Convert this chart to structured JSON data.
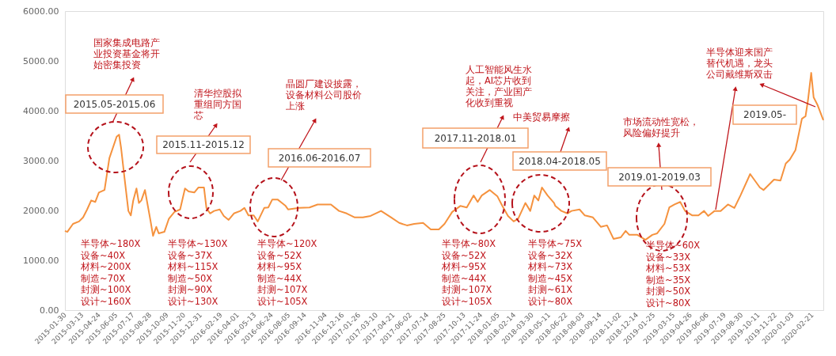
{
  "chart_data": {
    "type": "line",
    "x": [
      "2015-01-30",
      "2015-02-05",
      "2015-02-19",
      "2015-03-06",
      "2015-03-16",
      "2015-03-26",
      "2015-04-05",
      "2015-04-15",
      "2015-04-24",
      "2015-05-08",
      "2015-05-20",
      "2015-06-07",
      "2015-06-13",
      "2015-06-18",
      "2015-06-26",
      "2015-07-06",
      "2015-07-12",
      "2015-07-18",
      "2015-07-26",
      "2015-08-01",
      "2015-08-07",
      "2015-08-16",
      "2015-08-24",
      "2015-08-30",
      "2015-09-05",
      "2015-09-13",
      "2015-09-19",
      "2015-10-03",
      "2015-10-14",
      "2015-10-28",
      "2015-11-11",
      "2015-11-23",
      "2015-12-02",
      "2015-12-16",
      "2015-12-26",
      "2016-01-09",
      "2016-01-15",
      "2016-01-24",
      "2016-02-03",
      "2016-02-17",
      "2016-02-27",
      "2016-03-10",
      "2016-03-23",
      "2016-04-08",
      "2016-04-18",
      "2016-04-28",
      "2016-05-11",
      "2016-05-21",
      "2016-06-06",
      "2016-06-16",
      "2016-06-26",
      "2016-07-09",
      "2016-07-29",
      "2016-08-04",
      "2016-08-31",
      "2016-09-26",
      "2016-10-16",
      "2016-11-18",
      "2016-12-08",
      "2016-12-27",
      "2017-01-16",
      "2017-02-05",
      "2017-02-24",
      "2017-03-22",
      "2017-04-16",
      "2017-05-06",
      "2017-05-25",
      "2017-06-12",
      "2017-07-04",
      "2017-07-23",
      "2017-08-12",
      "2017-08-26",
      "2017-09-14",
      "2017-10-04",
      "2017-10-20",
      "2017-11-06",
      "2017-11-16",
      "2017-11-26",
      "2017-12-16",
      "2018-01-04",
      "2018-01-16",
      "2018-01-30",
      "2018-02-13",
      "2018-02-24",
      "2018-03-14",
      "2018-03-26",
      "2018-04-05",
      "2018-04-15",
      "2018-04-24",
      "2018-05-08",
      "2018-05-24",
      "2018-05-27",
      "2018-06-11",
      "2018-06-26",
      "2018-07-06",
      "2018-07-26",
      "2018-08-08",
      "2018-08-28",
      "2018-09-17",
      "2018-10-02",
      "2018-10-18",
      "2018-11-05",
      "2018-11-17",
      "2018-11-26",
      "2018-12-16",
      "2019-01-05",
      "2019-01-22",
      "2019-02-03",
      "2019-02-21",
      "2019-03-05",
      "2019-03-18",
      "2019-04-01",
      "2019-04-13",
      "2019-05-01",
      "2019-05-16",
      "2019-05-30",
      "2019-06-09",
      "2019-06-25",
      "2019-07-10",
      "2019-07-28",
      "2019-08-13",
      "2019-08-28",
      "2019-09-21",
      "2019-10-15",
      "2019-10-24",
      "2019-11-19",
      "2019-12-05",
      "2019-12-18",
      "2019-12-28",
      "2020-01-11",
      "2020-01-27",
      "2020-02-05",
      "2020-02-11",
      "2020-02-19",
      "2020-02-25",
      "2020-03-06",
      "2020-03-20"
    ],
    "series": [
      {
        "color": "#f5923e",
        "values": [
          1590,
          1570,
          1730,
          1780,
          1860,
          2020,
          2200,
          2170,
          2360,
          2410,
          3050,
          3480,
          3520,
          3250,
          2680,
          1990,
          1900,
          2200,
          2440,
          2150,
          2200,
          2410,
          2050,
          1780,
          1490,
          1670,
          1540,
          1570,
          1830,
          1970,
          2020,
          2440,
          2380,
          2360,
          2460,
          2460,
          2050,
          1940,
          1990,
          2020,
          1890,
          1810,
          1940,
          1990,
          2050,
          1900,
          1900,
          1780,
          2050,
          2060,
          2220,
          2220,
          2090,
          2020,
          2050,
          2060,
          2120,
          2120,
          1990,
          1940,
          1860,
          1860,
          1890,
          1990,
          1860,
          1750,
          1700,
          1730,
          1750,
          1620,
          1620,
          1730,
          1970,
          2090,
          2060,
          2300,
          2170,
          2300,
          2410,
          2280,
          2090,
          1890,
          1780,
          1830,
          2150,
          1990,
          2300,
          2200,
          2460,
          2300,
          2150,
          2090,
          1990,
          1940,
          1990,
          2020,
          1900,
          1860,
          1670,
          1700,
          1430,
          1460,
          1590,
          1510,
          1510,
          1410,
          1510,
          1540,
          1730,
          2060,
          2120,
          2170,
          1990,
          1900,
          1900,
          1990,
          1890,
          1990,
          1990,
          2120,
          2050,
          2300,
          2730,
          2460,
          2410,
          2620,
          2600,
          2940,
          3020,
          3210,
          3840,
          3890,
          4210,
          4760,
          4270,
          4110,
          3810
        ]
      }
    ],
    "xlim": [
      "2015-01-30",
      "2020-03-20"
    ],
    "xticks": [
      "2015-01-30",
      "2015-03-13",
      "2015-04-24",
      "2015-06-05",
      "2015-07-17",
      "2015-08-28",
      "2015-10-09",
      "2015-11-20",
      "2015-12-31",
      "2016-02-19",
      "2016-04-01",
      "2016-05-13",
      "2016-06-24",
      "2016-08-05",
      "2016-09-14",
      "2016-11-04",
      "2016-12-16",
      "2017-01-26",
      "2017-03-10",
      "2017-04-21",
      "2017-06-02",
      "2017-07-14",
      "2017-08-25",
      "2017-10-13",
      "2017-11-24",
      "2018-01-05",
      "2018-02-14",
      "2018-03-30",
      "2018-05-11",
      "2018-06-22",
      "2018-08-03",
      "2018-09-14",
      "2018-11-02",
      "2018-12-14",
      "2019-01-25",
      "2019-03-15",
      "2019-04-26",
      "2019-06-06",
      "2019-07-19",
      "2019-08-30",
      "2019-10-11",
      "2019-11-22",
      "2020-01-03",
      "2020-02-21"
    ],
    "ylim": [
      0,
      6000
    ],
    "yticks": [
      {
        "value": 0,
        "label": "0.00"
      },
      {
        "value": 1000,
        "label": "1000.00"
      },
      {
        "value": 2000,
        "label": "2000.00"
      },
      {
        "value": 3000,
        "label": "3000.00"
      },
      {
        "value": 4000,
        "label": "4000.00"
      },
      {
        "value": 5000,
        "label": "5000.00"
      },
      {
        "value": 6000,
        "label": "6000.00"
      }
    ],
    "grid": false,
    "annotations": [
      "国家集成电路产业投资基金将开始密集投资",
      "2015.05-2015.06",
      "半导体~180X\n设备~40X\n材料~200X\n制造~70X\n封测~100X\n设计~160X",
      "清华控股拟重组同方国芯",
      "2015.11-2015.12",
      "半导体~130X\n设备~37X\n材料~115X\n制造~50X\n封测~90X\n设计~130X",
      "晶圆厂建设披露，设备材料公司股价上涨",
      "2016.06-2016.07",
      "半导体~120X\n设备~52X\n材料~95X\n制造~44X\n封测~107X\n设计~105X",
      "人工智能风生水起，AI芯片收到关注，产业国产化收到重视",
      "2017.11-2018.01",
      "半导体~80X\n设备~52X\n材料~95X\n制造~44X\n封测~107X\n设计~105X",
      "中美贸易摩擦",
      "2018.04-2018.05",
      "半导体~75X\n设备~32X\n材料~73X\n制造~45X\n封测~61X\n设计~80X",
      "市场流动性宽松，风险偏好提升",
      "2019.01-2019.03",
      "半导体~60X\n设备~33X\n材料~53X\n制造~35X\n封测~50X\n设计~80X",
      "半导体迎来国产替代机遇，龙头公司戴维斯双击",
      "2019.05-"
    ]
  }
}
